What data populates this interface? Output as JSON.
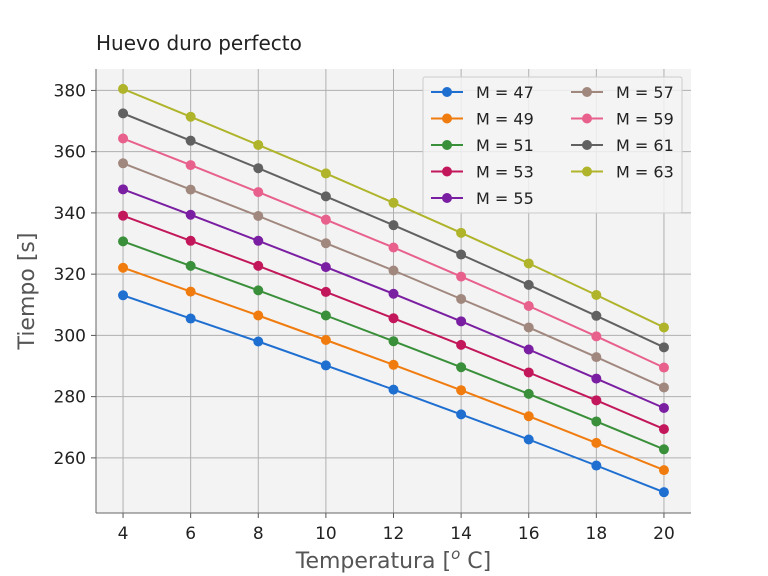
{
  "chart_data": {
    "type": "line",
    "title": "Huevo duro perfecto",
    "xlabel": "Temperatura [$^o$ C]",
    "ylabel": "Tiempo [s]",
    "x": [
      4,
      6,
      8,
      10,
      12,
      14,
      16,
      18,
      20
    ],
    "xlim": [
      3.2,
      20.8
    ],
    "ylim": [
      242,
      387
    ],
    "xticks": [
      "4",
      "6",
      "8",
      "10",
      "12",
      "14",
      "16",
      "18",
      "20"
    ],
    "yticks": [
      "260",
      "280",
      "300",
      "320",
      "340",
      "360",
      "380"
    ],
    "grid": true,
    "legend": {
      "position": "top-right",
      "columns": 2
    },
    "series": [
      {
        "name": "M = 47",
        "color": "#1f6fd1",
        "values": [
          313.1,
          305.5,
          298.0,
          290.2,
          282.3,
          274.2,
          266.0,
          257.5,
          248.8
        ]
      },
      {
        "name": "M = 49",
        "color": "#f07c0f",
        "values": [
          322.1,
          314.3,
          306.5,
          298.5,
          290.4,
          282.1,
          273.6,
          264.9,
          256.0
        ]
      },
      {
        "name": "M = 51",
        "color": "#3a8f3a",
        "values": [
          330.7,
          322.7,
          314.7,
          306.5,
          298.1,
          289.6,
          280.9,
          271.9,
          262.8
        ]
      },
      {
        "name": "M = 53",
        "color": "#c2185b",
        "values": [
          339.1,
          330.9,
          322.7,
          314.2,
          305.6,
          296.9,
          287.9,
          278.8,
          269.4
        ]
      },
      {
        "name": "M = 55",
        "color": "#7b1fa2",
        "values": [
          347.7,
          339.4,
          330.9,
          322.3,
          313.6,
          304.6,
          295.4,
          285.9,
          276.3
        ]
      },
      {
        "name": "M = 57",
        "color": "#a1887f",
        "values": [
          356.2,
          347.6,
          339.0,
          330.1,
          321.2,
          311.9,
          302.6,
          292.9,
          283.0
        ]
      },
      {
        "name": "M = 59",
        "color": "#e8608c",
        "values": [
          364.3,
          355.6,
          346.8,
          337.8,
          328.7,
          319.2,
          309.6,
          299.7,
          289.5
        ]
      },
      {
        "name": "M = 61",
        "color": "#616161",
        "values": [
          372.5,
          363.6,
          354.6,
          345.4,
          336.0,
          326.4,
          316.5,
          306.4,
          296.1
        ]
      },
      {
        "name": "M = 63",
        "color": "#afb42b",
        "values": [
          380.5,
          371.4,
          362.2,
          352.9,
          343.3,
          333.5,
          323.5,
          313.2,
          302.6
        ]
      }
    ]
  }
}
